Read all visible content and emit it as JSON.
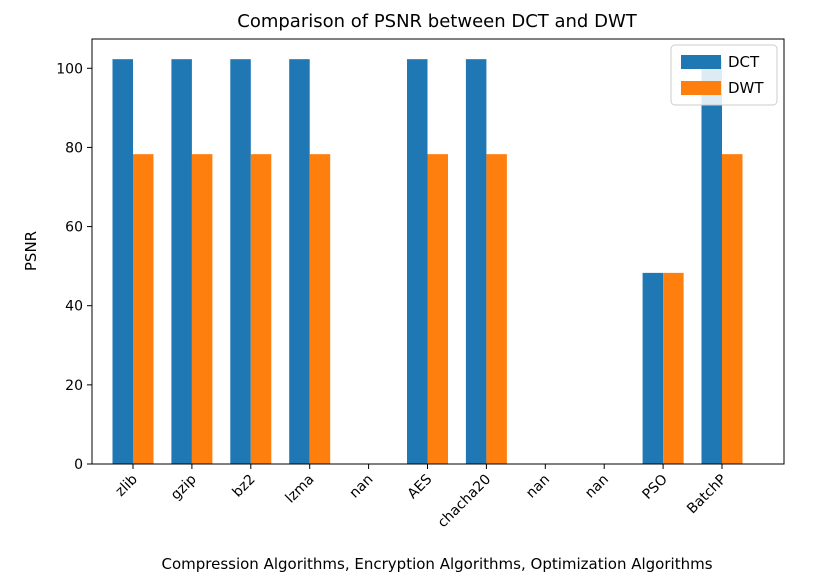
{
  "chart_data": {
    "type": "bar",
    "title": "Comparison of PSNR between DCT and DWT",
    "xlabel": "Compression Algorithms,  Encryption Algorithms,  Optimization Algorithms",
    "ylabel": "PSNR",
    "categories": [
      "zlib",
      "gzip",
      "bz2",
      "lzma",
      "nan",
      "AES",
      "chacha20",
      "nan",
      "nan",
      "PSO",
      "BatchP"
    ],
    "series": [
      {
        "name": "DCT",
        "color": "#1f77b4",
        "values": [
          102.3,
          102.3,
          102.3,
          102.3,
          null,
          102.3,
          102.3,
          null,
          null,
          48.3,
          102.3
        ]
      },
      {
        "name": "DWT",
        "color": "#ff7f0e",
        "values": [
          78.3,
          78.3,
          78.3,
          78.3,
          null,
          78.3,
          78.3,
          null,
          null,
          48.3,
          78.3
        ]
      }
    ],
    "ylim": [
      0,
      107.4
    ],
    "yticks": [
      0,
      20,
      40,
      60,
      80,
      100
    ],
    "grid": false,
    "legend": "top-right"
  }
}
